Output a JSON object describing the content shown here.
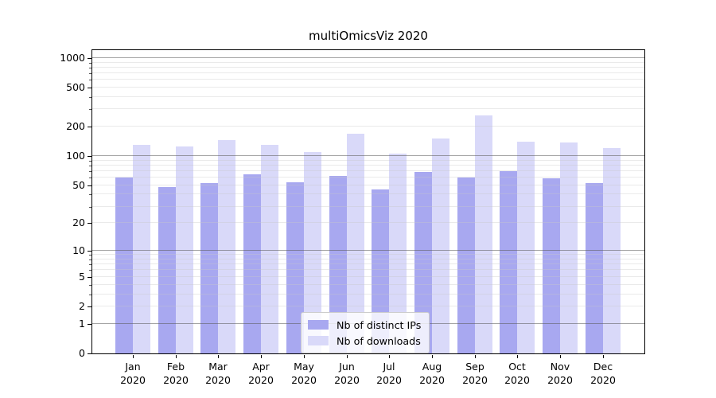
{
  "chart_data": {
    "type": "bar",
    "title": "multiOmicsViz 2020",
    "categories": [
      "Jan",
      "Feb",
      "Mar",
      "Apr",
      "May",
      "Jun",
      "Jul",
      "Aug",
      "Sep",
      "Oct",
      "Nov",
      "Dec"
    ],
    "category_sub_label": "2020",
    "series": [
      {
        "name": "Nb of distinct IPs",
        "color": "#a8a8f0",
        "values": [
          60,
          48,
          53,
          65,
          54,
          63,
          45,
          69,
          60,
          70,
          59,
          53
        ]
      },
      {
        "name": "Nb of downloads",
        "color": "#d9d9f9",
        "values": [
          130,
          126,
          146,
          131,
          111,
          170,
          106,
          150,
          258,
          141,
          138,
          121
        ]
      }
    ],
    "y_scale": "log1p",
    "ylim": [
      0,
      1230
    ],
    "y_ticks": [
      0,
      1,
      2,
      5,
      10,
      20,
      50,
      100,
      200,
      500,
      1000
    ],
    "y_major_grid": [
      1,
      10,
      100,
      1000
    ],
    "y_minor_grid": [
      2,
      3,
      4,
      5,
      6,
      7,
      8,
      9,
      20,
      30,
      40,
      50,
      60,
      70,
      80,
      90,
      200,
      300,
      400,
      500,
      600,
      700,
      800,
      900
    ],
    "grid": "on",
    "legend_position": "lower center",
    "xlabel": "",
    "ylabel": ""
  },
  "colors": {
    "background": "#ffffff",
    "axis": "#000000",
    "major_grid": "#aaaaaa",
    "minor_grid": "#ececec",
    "legend_border": "#cccccc",
    "bar_distinct_ips": "#a8a8f0",
    "bar_downloads": "#d9d9f9"
  }
}
